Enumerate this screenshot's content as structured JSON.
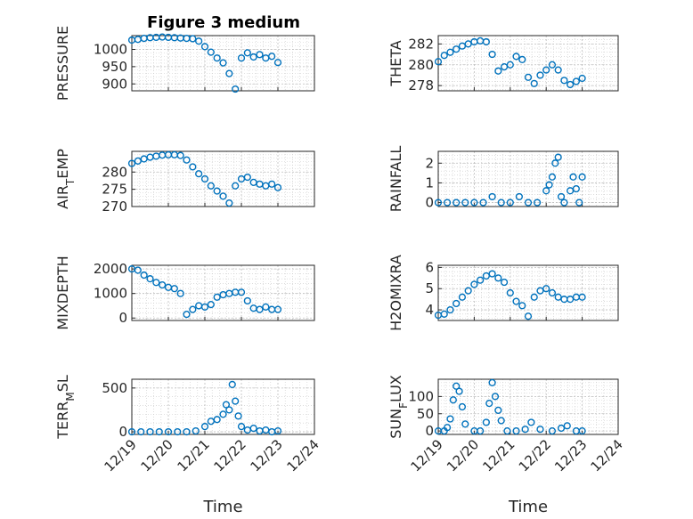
{
  "figure": {
    "title": "Figure 3 medium"
  },
  "chart_data": [
    {
      "type": "scatter",
      "title": "Figure 3 medium",
      "ylabel": "PRESSURE",
      "xlabel": "",
      "xlim": [
        "12/19",
        "12/24"
      ],
      "ylim": [
        880,
        1040
      ],
      "yticks": [
        900,
        950,
        1000
      ],
      "ytick_labels": [
        "900",
        "950",
        "1000"
      ],
      "xticks": [
        "12/19",
        "12/20",
        "12/21",
        "12/22",
        "12/23",
        "12/24"
      ],
      "xtick_labels_shown": false,
      "grid": true,
      "marker": "circle",
      "color": "#0072BD",
      "series": [
        {
          "x": [
            "12/19 00:00",
            "12/19 04:00",
            "12/19 08:00",
            "12/19 12:00",
            "12/19 16:00",
            "12/19 20:00",
            "12/20 00:00",
            "12/20 04:00",
            "12/20 08:00",
            "12/20 12:00",
            "12/20 16:00",
            "12/20 20:00",
            "12/21 00:00",
            "12/21 04:00",
            "12/21 08:00",
            "12/21 12:00",
            "12/21 16:00",
            "12/21 20:00",
            "12/22 00:00",
            "12/22 04:00",
            "12/22 08:00",
            "12/22 12:00",
            "12/22 16:00",
            "12/22 20:00",
            "12/23 00:00"
          ],
          "y": [
            1027,
            1029,
            1032,
            1034,
            1035,
            1036,
            1035,
            1034,
            1033,
            1032,
            1031,
            1024,
            1008,
            992,
            975,
            961,
            930,
            885,
            975,
            990,
            978,
            985,
            975,
            980,
            962
          ]
        }
      ]
    },
    {
      "type": "scatter",
      "title": "",
      "ylabel": "THETA",
      "xlabel": "",
      "xlim": [
        "12/19",
        "12/24"
      ],
      "ylim": [
        277.5,
        282.8
      ],
      "yticks": [
        278,
        280,
        282
      ],
      "ytick_labels": [
        "278",
        "280",
        "282"
      ],
      "xticks": [
        "12/19",
        "12/20",
        "12/21",
        "12/22",
        "12/23",
        "12/24"
      ],
      "xtick_labels_shown": false,
      "grid": true,
      "marker": "circle",
      "color": "#0072BD",
      "series": [
        {
          "x": [
            "12/19 00:00",
            "12/19 04:00",
            "12/19 08:00",
            "12/19 12:00",
            "12/19 16:00",
            "12/19 20:00",
            "12/20 00:00",
            "12/20 04:00",
            "12/20 08:00",
            "12/20 12:00",
            "12/20 16:00",
            "12/20 20:00",
            "12/21 00:00",
            "12/21 04:00",
            "12/21 08:00",
            "12/21 12:00",
            "12/21 16:00",
            "12/21 20:00",
            "12/22 00:00",
            "12/22 04:00",
            "12/22 08:00",
            "12/22 12:00",
            "12/22 16:00",
            "12/22 20:00",
            "12/23 00:00"
          ],
          "y": [
            280.3,
            280.9,
            281.2,
            281.5,
            281.8,
            282.0,
            282.2,
            282.3,
            282.2,
            281.0,
            279.4,
            279.8,
            280.0,
            280.8,
            280.5,
            278.8,
            278.2,
            279.0,
            279.5,
            280.0,
            279.5,
            278.5,
            278.1,
            278.4,
            278.7
          ]
        }
      ]
    },
    {
      "type": "scatter",
      "title": "",
      "ylabel": "AIR_TEMP",
      "xlabel": "",
      "xlim": [
        "12/19",
        "12/24"
      ],
      "ylim": [
        270,
        286
      ],
      "yticks": [
        270,
        275,
        280
      ],
      "ytick_labels": [
        "270",
        "275",
        "280"
      ],
      "xticks": [
        "12/19",
        "12/20",
        "12/21",
        "12/22",
        "12/23",
        "12/24"
      ],
      "xtick_labels_shown": false,
      "grid": true,
      "marker": "circle",
      "color": "#0072BD",
      "series": [
        {
          "x": [
            "12/19 00:00",
            "12/19 04:00",
            "12/19 08:00",
            "12/19 12:00",
            "12/19 16:00",
            "12/19 20:00",
            "12/20 00:00",
            "12/20 04:00",
            "12/20 08:00",
            "12/20 12:00",
            "12/20 16:00",
            "12/20 20:00",
            "12/21 00:00",
            "12/21 04:00",
            "12/21 08:00",
            "12/21 12:00",
            "12/21 16:00",
            "12/21 20:00",
            "12/22 00:00",
            "12/22 04:00",
            "12/22 08:00",
            "12/22 12:00",
            "12/22 16:00",
            "12/22 20:00",
            "12/23 00:00"
          ],
          "y": [
            282.5,
            283.2,
            283.8,
            284.3,
            284.6,
            284.9,
            285.0,
            285.0,
            284.8,
            283.5,
            281.5,
            279.5,
            278.0,
            276.0,
            274.5,
            273.0,
            271.0,
            276.0,
            278.0,
            278.5,
            277.0,
            276.5,
            276.0,
            276.5,
            275.5
          ]
        }
      ]
    },
    {
      "type": "scatter",
      "title": "",
      "ylabel": "RAINFALL",
      "xlabel": "",
      "xlim": [
        "12/19",
        "12/24"
      ],
      "ylim": [
        -0.2,
        2.6
      ],
      "yticks": [
        0,
        1,
        2
      ],
      "ytick_labels": [
        "0",
        "1",
        "2"
      ],
      "xticks": [
        "12/19",
        "12/20",
        "12/21",
        "12/22",
        "12/23",
        "12/24"
      ],
      "xtick_labels_shown": false,
      "grid": true,
      "marker": "circle",
      "color": "#0072BD",
      "series": [
        {
          "x": [
            "12/19 00:00",
            "12/19 06:00",
            "12/19 12:00",
            "12/19 18:00",
            "12/20 00:00",
            "12/20 06:00",
            "12/20 12:00",
            "12/20 18:00",
            "12/21 00:00",
            "12/21 06:00",
            "12/21 12:00",
            "12/21 18:00",
            "12/22 00:00",
            "12/22 02:00",
            "12/22 04:00",
            "12/22 06:00",
            "12/22 08:00",
            "12/22 10:00",
            "12/22 12:00",
            "12/22 16:00",
            "12/22 18:00",
            "12/22 20:00",
            "12/22 22:00",
            "12/23 00:00"
          ],
          "y": [
            0,
            0,
            0,
            0,
            0,
            0,
            0.3,
            0,
            0,
            0.3,
            0,
            0,
            0.6,
            0.9,
            1.3,
            2.0,
            2.3,
            0.3,
            0,
            0.6,
            1.3,
            0.7,
            0,
            1.3
          ]
        }
      ]
    },
    {
      "type": "scatter",
      "title": "",
      "ylabel": "MIXDEPTH",
      "xlabel": "",
      "xlim": [
        "12/19",
        "12/24"
      ],
      "ylim": [
        -100,
        2150
      ],
      "yticks": [
        0,
        1000,
        2000
      ],
      "ytick_labels": [
        "0",
        "1000",
        "2000"
      ],
      "xticks": [
        "12/19",
        "12/20",
        "12/21",
        "12/22",
        "12/23",
        "12/24"
      ],
      "xtick_labels_shown": false,
      "grid": true,
      "marker": "circle",
      "color": "#0072BD",
      "series": [
        {
          "x": [
            "12/19 00:00",
            "12/19 04:00",
            "12/19 08:00",
            "12/19 12:00",
            "12/19 16:00",
            "12/19 20:00",
            "12/20 00:00",
            "12/20 04:00",
            "12/20 08:00",
            "12/20 12:00",
            "12/20 16:00",
            "12/20 20:00",
            "12/21 00:00",
            "12/21 04:00",
            "12/21 08:00",
            "12/21 12:00",
            "12/21 16:00",
            "12/21 20:00",
            "12/22 00:00",
            "12/22 04:00",
            "12/22 08:00",
            "12/22 12:00",
            "12/22 16:00",
            "12/22 20:00",
            "12/23 00:00"
          ],
          "y": [
            2000,
            1950,
            1750,
            1600,
            1450,
            1350,
            1250,
            1200,
            1000,
            150,
            350,
            500,
            450,
            550,
            850,
            950,
            1000,
            1050,
            1050,
            700,
            400,
            350,
            450,
            350,
            350
          ]
        }
      ]
    },
    {
      "type": "scatter",
      "title": "",
      "ylabel": "H2OMIXRA",
      "xlabel": "",
      "xlim": [
        "12/19",
        "12/24"
      ],
      "ylim": [
        3.5,
        6.1
      ],
      "yticks": [
        4,
        5,
        6
      ],
      "ytick_labels": [
        "4",
        "5",
        "6"
      ],
      "xticks": [
        "12/19",
        "12/20",
        "12/21",
        "12/22",
        "12/23",
        "12/24"
      ],
      "xtick_labels_shown": false,
      "grid": true,
      "marker": "circle",
      "color": "#0072BD",
      "series": [
        {
          "x": [
            "12/19 00:00",
            "12/19 04:00",
            "12/19 08:00",
            "12/19 12:00",
            "12/19 16:00",
            "12/19 20:00",
            "12/20 00:00",
            "12/20 04:00",
            "12/20 08:00",
            "12/20 12:00",
            "12/20 16:00",
            "12/20 20:00",
            "12/21 00:00",
            "12/21 04:00",
            "12/21 08:00",
            "12/21 12:00",
            "12/21 16:00",
            "12/21 20:00",
            "12/22 00:00",
            "12/22 04:00",
            "12/22 08:00",
            "12/22 12:00",
            "12/22 16:00",
            "12/22 20:00",
            "12/23 00:00"
          ],
          "y": [
            3.75,
            3.8,
            4.0,
            4.3,
            4.6,
            4.9,
            5.2,
            5.4,
            5.6,
            5.7,
            5.5,
            5.3,
            4.8,
            4.4,
            4.2,
            3.7,
            4.6,
            4.9,
            5.0,
            4.8,
            4.6,
            4.5,
            4.5,
            4.6,
            4.6
          ]
        }
      ]
    },
    {
      "type": "scatter",
      "title": "",
      "ylabel": "TERR_MSL",
      "xlabel": "Time",
      "xlim": [
        "12/19",
        "12/24"
      ],
      "ylim": [
        -30,
        600
      ],
      "yticks": [
        0,
        500
      ],
      "ytick_labels": [
        "0",
        "500"
      ],
      "xticks": [
        "12/19",
        "12/20",
        "12/21",
        "12/22",
        "12/23",
        "12/24"
      ],
      "xtick_labels": [
        "12/19",
        "12/20",
        "12/21",
        "12/22",
        "12/23",
        "12/24"
      ],
      "grid": true,
      "marker": "circle",
      "color": "#0072BD",
      "series": [
        {
          "x": [
            "12/19 00:00",
            "12/19 06:00",
            "12/19 12:00",
            "12/19 18:00",
            "12/20 00:00",
            "12/20 06:00",
            "12/20 12:00",
            "12/20 18:00",
            "12/21 00:00",
            "12/21 04:00",
            "12/21 08:00",
            "12/21 12:00",
            "12/21 14:00",
            "12/21 16:00",
            "12/21 18:00",
            "12/21 20:00",
            "12/21 22:00",
            "12/22 00:00",
            "12/22 04:00",
            "12/22 08:00",
            "12/22 12:00",
            "12/22 16:00",
            "12/22 20:00",
            "12/23 00:00"
          ],
          "y": [
            0,
            0,
            0,
            0,
            0,
            0,
            0,
            10,
            60,
            120,
            140,
            200,
            310,
            250,
            540,
            350,
            180,
            60,
            20,
            40,
            10,
            20,
            0,
            10
          ]
        }
      ]
    },
    {
      "type": "scatter",
      "title": "",
      "ylabel": "SUN_FLUX",
      "xlabel": "Time",
      "xlim": [
        "12/19",
        "12/24"
      ],
      "ylim": [
        -10,
        150
      ],
      "yticks": [
        0,
        50,
        100
      ],
      "ytick_labels": [
        "0",
        "50",
        "100"
      ],
      "xticks": [
        "12/19",
        "12/20",
        "12/21",
        "12/22",
        "12/23",
        "12/24"
      ],
      "xtick_labels": [
        "12/19",
        "12/20",
        "12/21",
        "12/22",
        "12/23",
        "12/24"
      ],
      "grid": true,
      "marker": "circle",
      "color": "#0072BD",
      "series": [
        {
          "x": [
            "12/19 00:00",
            "12/19 04:00",
            "12/19 06:00",
            "12/19 08:00",
            "12/19 10:00",
            "12/19 12:00",
            "12/19 14:00",
            "12/19 16:00",
            "12/19 18:00",
            "12/20 00:00",
            "12/20 04:00",
            "12/20 08:00",
            "12/20 10:00",
            "12/20 12:00",
            "12/20 14:00",
            "12/20 16:00",
            "12/20 18:00",
            "12/20 22:00",
            "12/21 04:00",
            "12/21 10:00",
            "12/21 14:00",
            "12/21 20:00",
            "12/22 04:00",
            "12/22 10:00",
            "12/22 14:00",
            "12/22 20:00",
            "12/23 00:00"
          ],
          "y": [
            0,
            0,
            10,
            35,
            90,
            130,
            115,
            70,
            20,
            0,
            0,
            25,
            80,
            140,
            100,
            60,
            30,
            0,
            0,
            5,
            25,
            5,
            0,
            8,
            15,
            0,
            0
          ]
        }
      ]
    }
  ]
}
